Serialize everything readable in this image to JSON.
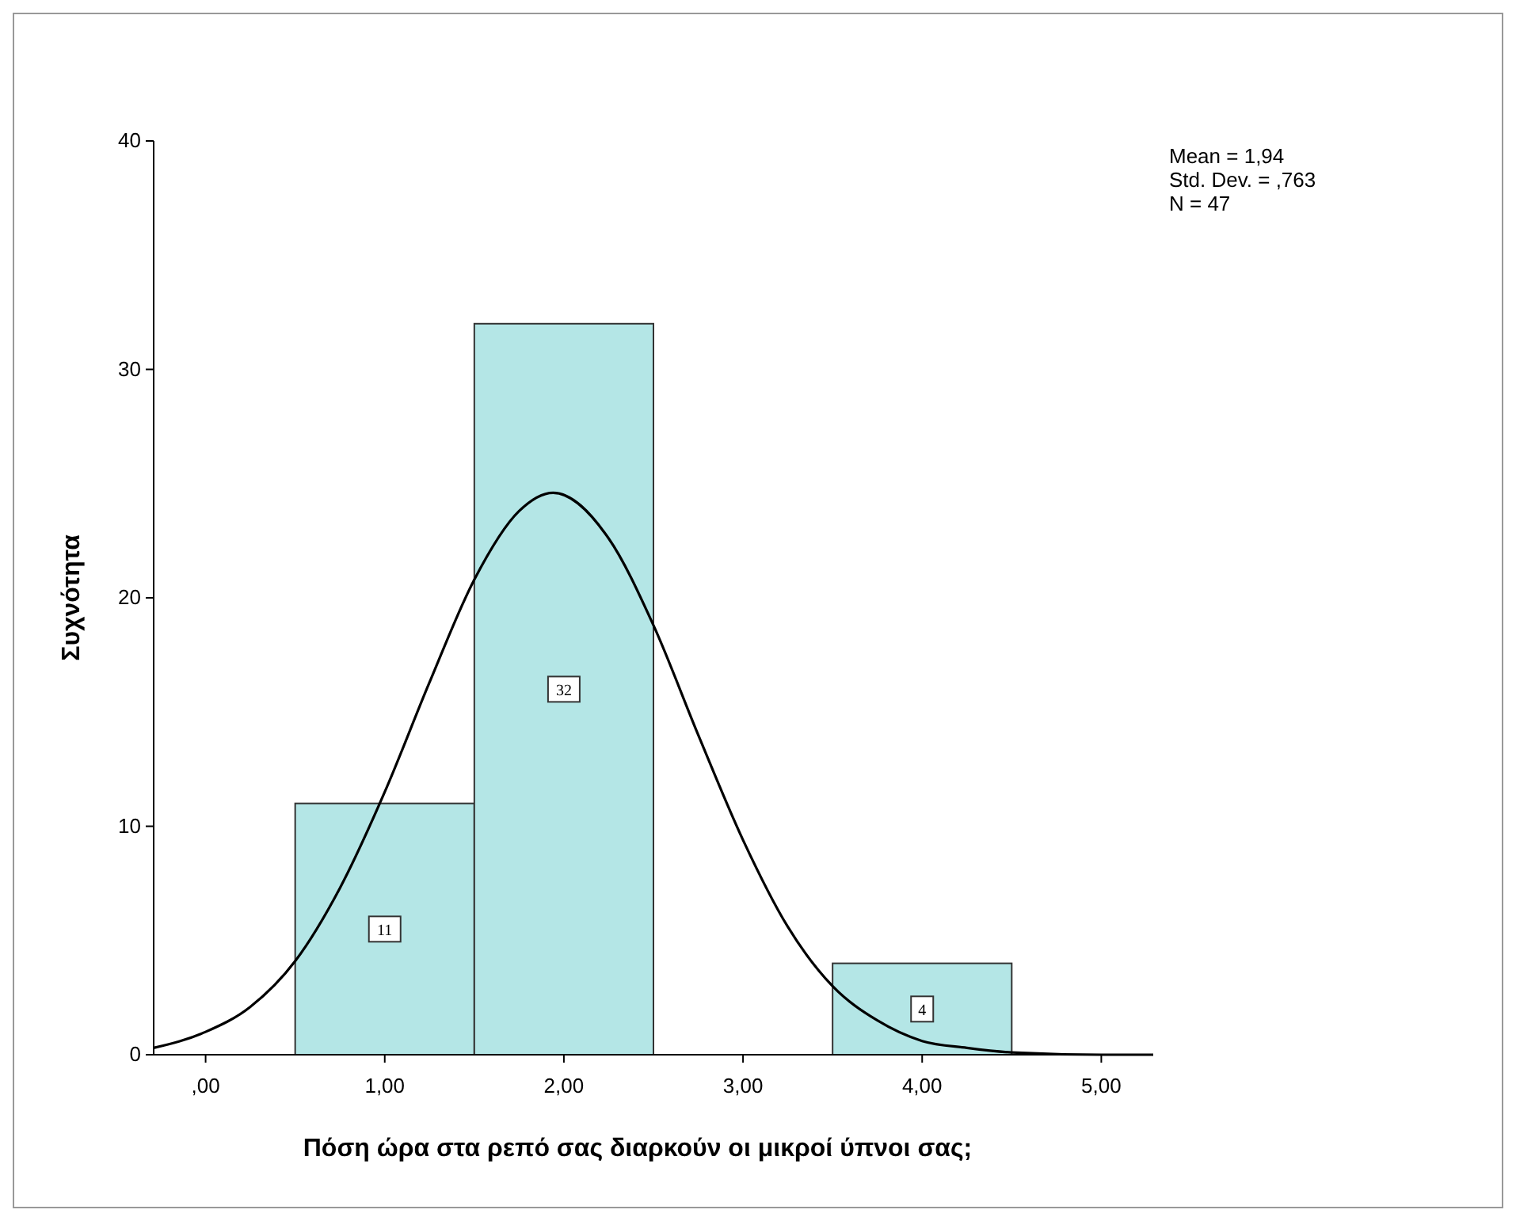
{
  "chart_data": {
    "type": "histogram",
    "xlabel": "Πόση ώρα στα ρεπό σας διαρκούν οι μικροί ύπνοι σας;",
    "ylabel": "Συχνότητα",
    "bins": [
      0.5,
      1.5,
      2.5,
      3.5,
      4.5
    ],
    "series": [
      {
        "color": "#b4e6e6",
        "values": [
          11,
          32,
          0,
          4
        ],
        "value_labels": [
          "11",
          "32",
          null,
          "4"
        ]
      },
      {
        "type": "line",
        "color": "#000000",
        "x": [
          -0.29,
          0,
          0.25,
          0.5,
          0.75,
          1,
          1.25,
          1.5,
          1.75,
          1.94,
          2.25,
          2.5,
          2.75,
          3,
          3.25,
          3.5,
          3.75,
          4,
          4.25,
          4.5,
          5,
          5.29
        ],
        "values": [
          0.3,
          1,
          2.1,
          4.1,
          7.3,
          11.5,
          16.3,
          20.8,
          23.8,
          24.6,
          22.6,
          18.8,
          14,
          9.4,
          5.6,
          3,
          1.5,
          0.6,
          0.3,
          0.1,
          0,
          0
        ]
      }
    ],
    "xlim": [
      -0.29,
      5.29
    ],
    "ylim": [
      0,
      40
    ],
    "xticks": [
      {
        "value": 0,
        "label": ",00"
      },
      {
        "value": 1,
        "label": "1,00"
      },
      {
        "value": 2,
        "label": "2,00"
      },
      {
        "value": 3,
        "label": "3,00"
      },
      {
        "value": 4,
        "label": "4,00"
      },
      {
        "value": 5,
        "label": "5,00"
      }
    ],
    "yticks": [
      0,
      10,
      20,
      30,
      40
    ],
    "annotations": [
      "Mean = 1,94",
      "Std. Dev. = ,763",
      "N = 47"
    ],
    "grid": false
  }
}
